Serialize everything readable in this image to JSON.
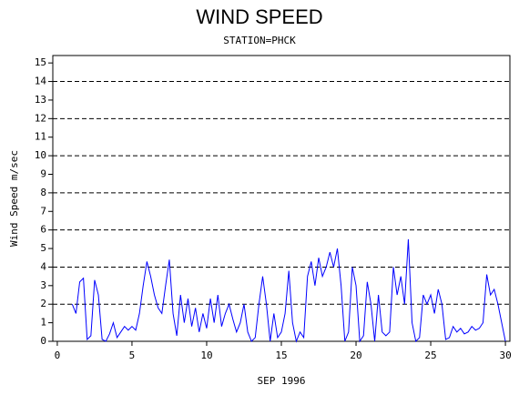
{
  "chart_data": {
    "type": "line",
    "title": "WIND SPEED",
    "subtitle": "STATION=PHCK",
    "xlabel": "SEP 1996",
    "ylabel": "Wind Speed m/sec",
    "x": [
      1,
      1.25,
      1.5,
      1.75,
      2,
      2.25,
      2.5,
      2.75,
      3,
      3.25,
      3.5,
      3.75,
      4,
      4.25,
      4.5,
      4.75,
      5,
      5.25,
      5.5,
      5.75,
      6,
      6.25,
      6.5,
      6.75,
      7,
      7.25,
      7.5,
      7.75,
      8,
      8.25,
      8.5,
      8.75,
      9,
      9.25,
      9.5,
      9.75,
      10,
      10.25,
      10.5,
      10.75,
      11,
      11.25,
      11.5,
      11.75,
      12,
      12.25,
      12.5,
      12.75,
      13,
      13.25,
      13.5,
      13.75,
      14,
      14.25,
      14.5,
      14.75,
      15,
      15.25,
      15.5,
      15.75,
      16,
      16.25,
      16.5,
      16.75,
      17,
      17.25,
      17.5,
      17.75,
      18,
      18.25,
      18.5,
      18.75,
      19,
      19.25,
      19.5,
      19.75,
      20,
      20.25,
      20.5,
      20.75,
      21,
      21.25,
      21.5,
      21.75,
      22,
      22.25,
      22.5,
      22.75,
      23,
      23.25,
      23.5,
      23.75,
      24,
      24.25,
      24.5,
      24.75,
      25,
      25.25,
      25.5,
      25.75,
      26,
      26.25,
      26.5,
      26.75,
      27,
      27.25,
      27.5,
      27.75,
      28,
      28.25,
      28.5,
      28.75,
      29,
      29.25,
      29.5,
      29.75,
      30
    ],
    "series": [
      {
        "name": "Wind Speed",
        "color": "#0000ff",
        "values": [
          2.0,
          1.5,
          3.2,
          3.4,
          0.1,
          0.3,
          3.3,
          2.5,
          0.1,
          0.0,
          0.4,
          1.0,
          0.2,
          0.5,
          0.8,
          0.6,
          0.8,
          0.6,
          1.5,
          3.0,
          4.3,
          3.5,
          2.5,
          1.8,
          1.5,
          3.0,
          4.4,
          1.5,
          0.3,
          2.5,
          1.0,
          2.3,
          0.8,
          1.8,
          0.5,
          1.5,
          0.7,
          2.3,
          1.0,
          2.5,
          0.8,
          1.5,
          2.0,
          1.2,
          0.5,
          1.0,
          2.0,
          0.5,
          0.0,
          0.2,
          2.0,
          3.5,
          2.0,
          0.0,
          1.5,
          0.2,
          0.5,
          1.5,
          3.8,
          1.0,
          0.0,
          0.5,
          0.2,
          3.5,
          4.3,
          3.0,
          4.5,
          3.5,
          4.0,
          4.8,
          4.0,
          5.0,
          3.0,
          0.0,
          0.5,
          4.0,
          3.0,
          0.0,
          0.3,
          3.2,
          2.0,
          0.0,
          2.5,
          0.5,
          0.3,
          0.5,
          4.0,
          2.5,
          3.5,
          2.0,
          5.5,
          1.0,
          0.0,
          0.2,
          2.5,
          2.0,
          2.5,
          1.5,
          2.8,
          2.0,
          0.1,
          0.2,
          0.8,
          0.5,
          0.7,
          0.4,
          0.5,
          0.8,
          0.6,
          0.7,
          1.0,
          3.6,
          2.5,
          2.8,
          2.0,
          1.0,
          0.0
        ]
      }
    ],
    "xlim": [
      -0.3,
      30.3
    ],
    "xticks": [
      0,
      5,
      10,
      15,
      20,
      25,
      30
    ],
    "ylim": [
      0,
      15.4
    ],
    "yticks": [
      0,
      1,
      2,
      3,
      4,
      5,
      6,
      7,
      8,
      9,
      10,
      11,
      12,
      13,
      14,
      15
    ],
    "ygrid": [
      0,
      2,
      4,
      6,
      8,
      10,
      12,
      14
    ]
  }
}
